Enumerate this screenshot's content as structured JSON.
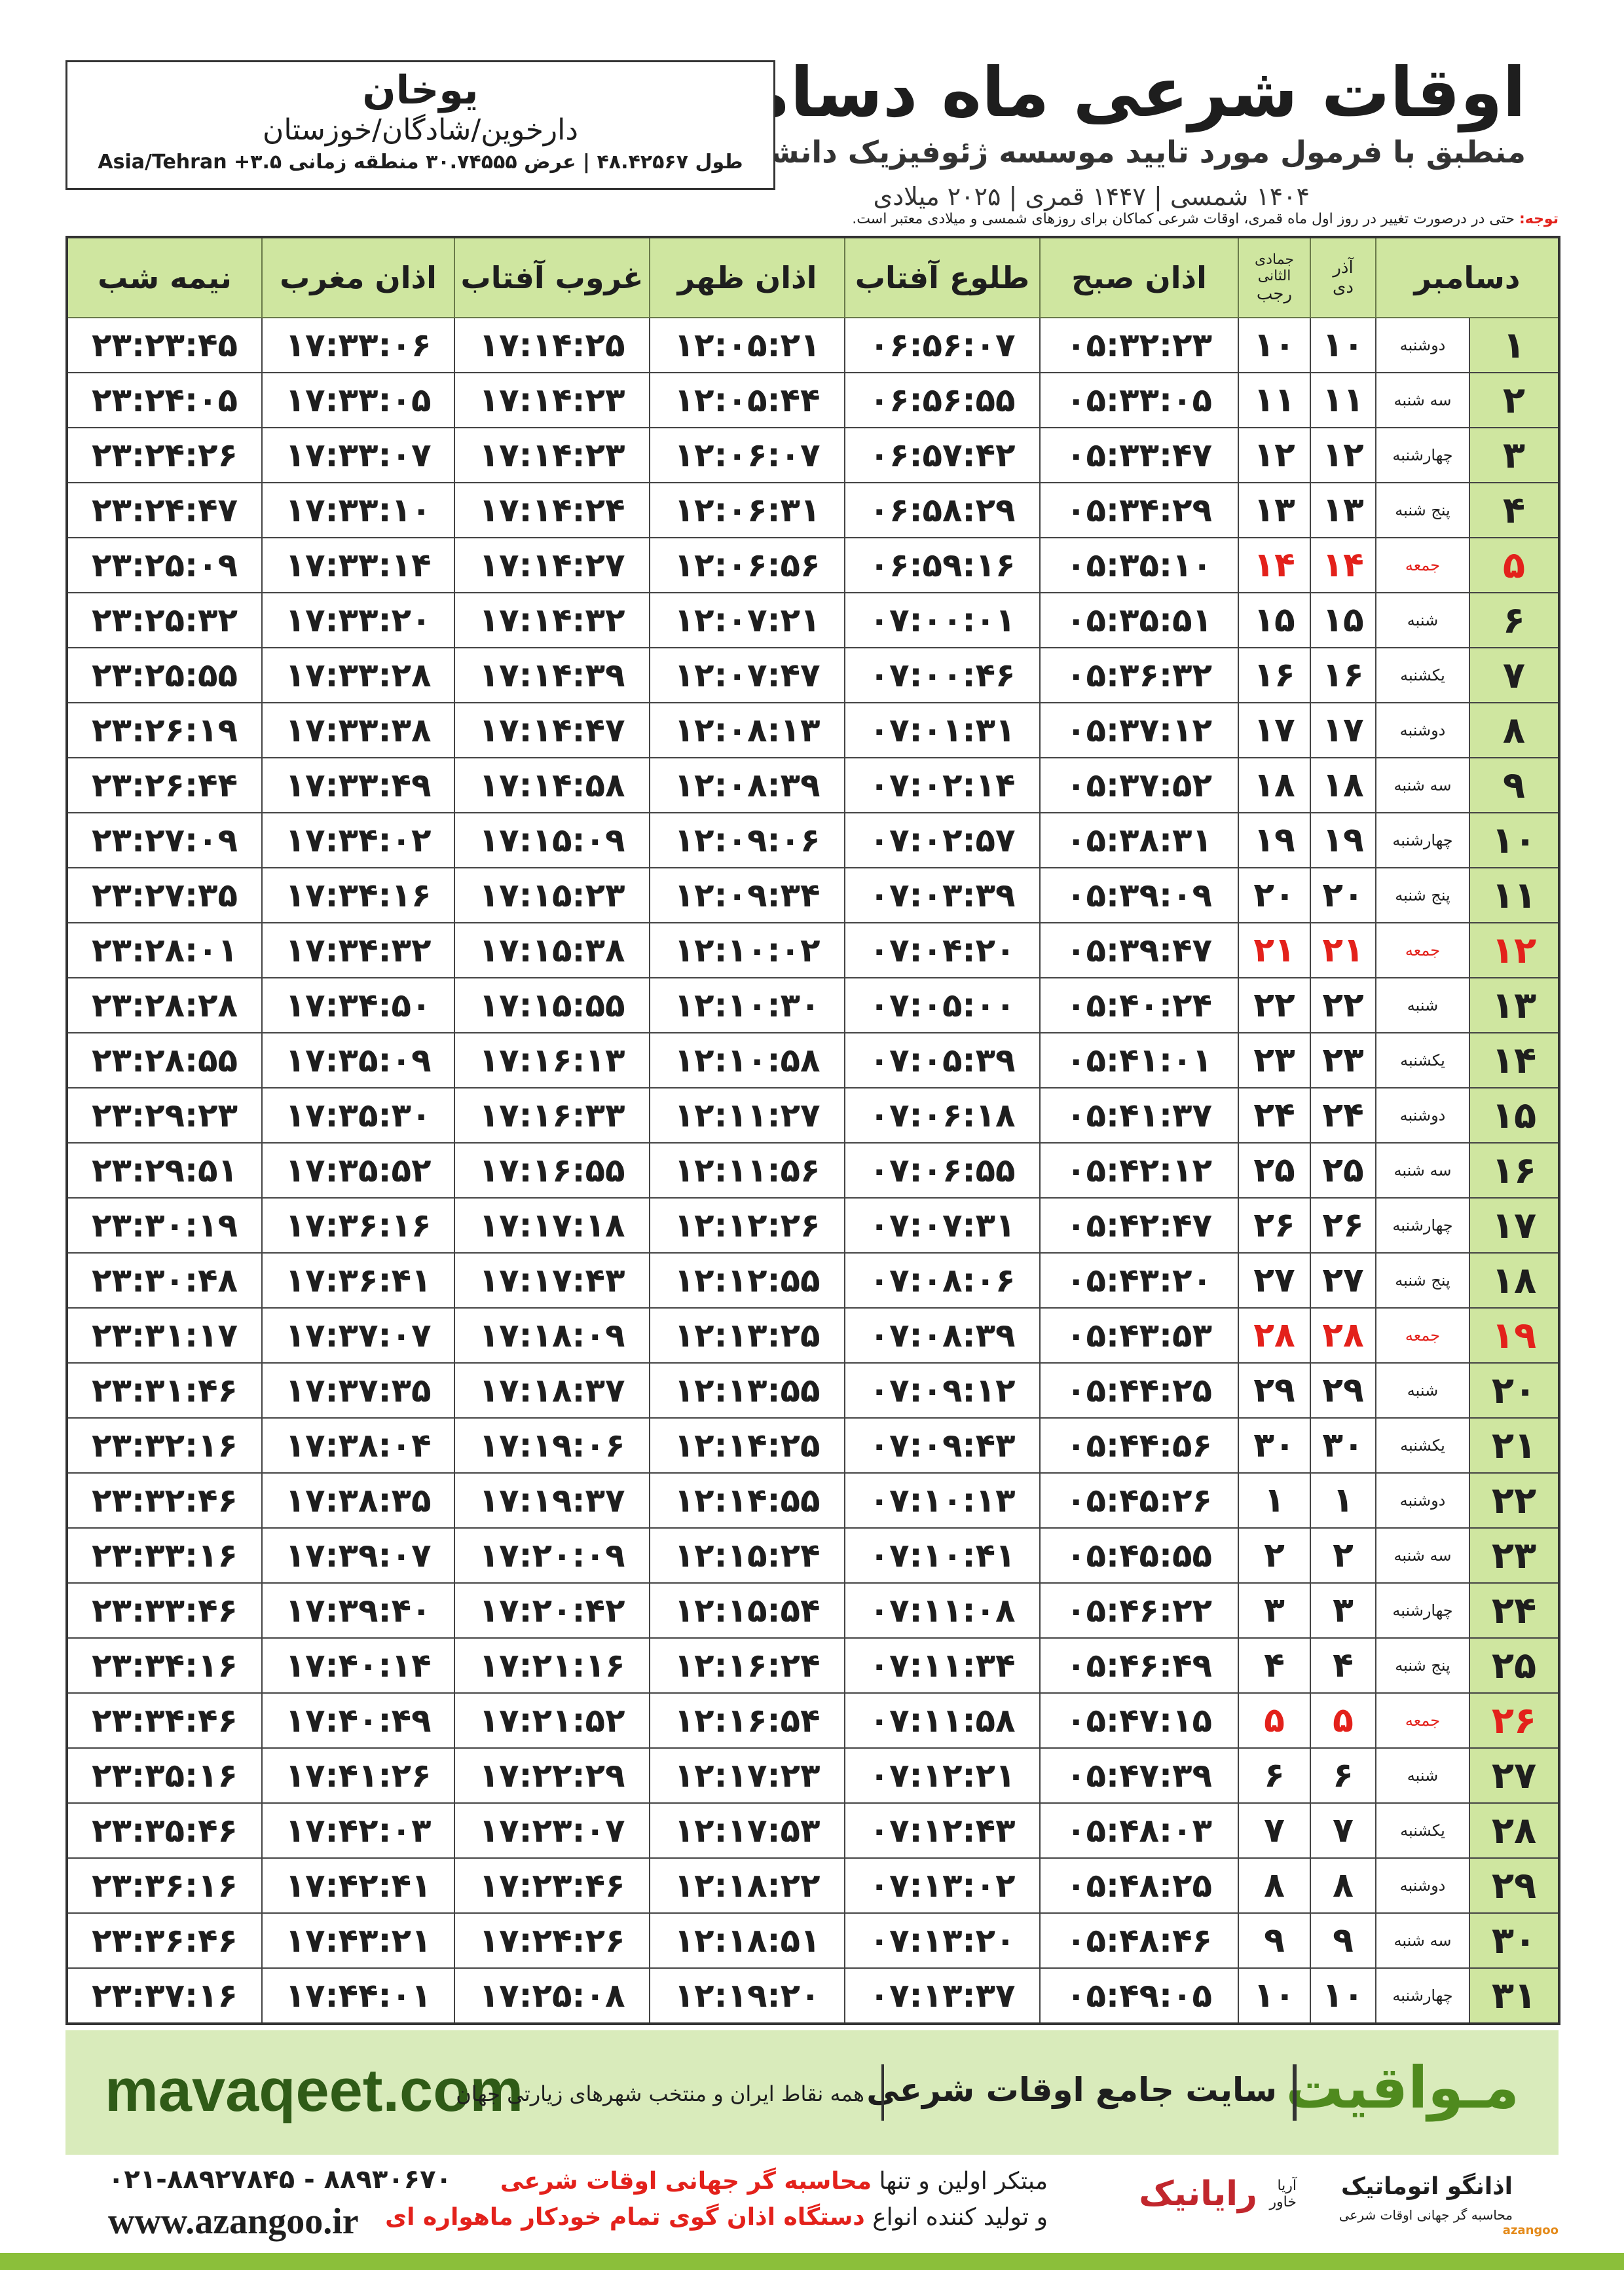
{
  "header": {
    "title": "اوقات شرعی ماه دسامبر",
    "subtitle": "منطبق با فرمول مورد تایید موسسه ژئوفیزیک دانشگاه تهران",
    "years": "۱۴۰۴ شمسی | ۱۴۴۷ قمری | ۲۰۲۵ میلادی",
    "city": "یوخان",
    "region": "دارخوین/شادگان/خوزستان",
    "coords": "طول ۴۸.۴۲۵۶۷ | عرض ۳۰.۷۴۵۵۵ منطقه زمانی ۳.۵+ Asia/Tehran",
    "note_label": "توجه:",
    "note": "حتی در درصورت تغییر در روز اول ماه قمری، اوقات شرعی کماکان برای روزهای شمسی و میلادی معتبر است."
  },
  "table": {
    "holiday_color": "#e3211b",
    "columns": {
      "month": "دسامبر",
      "solar_top": "آذر",
      "solar_bottom": "دی",
      "lunar_top": "جمادی الثانی",
      "lunar_bottom": "رجب",
      "fajr": "اذان صبح",
      "sunrise": "طلوع آفتاب",
      "dhuhr": "اذان ظهر",
      "sunset": "غروب آفتاب",
      "maghrib": "اذان مغرب",
      "midnight": "نیمه شب"
    },
    "rows": [
      {
        "cells": [
          "۱",
          "دوشنبه",
          "۱۰",
          "۱۰",
          "۰۵:۳۲:۲۳",
          "۰۶:۵۶:۰۷",
          "۱۲:۰۵:۲۱",
          "۱۷:۱۴:۲۵",
          "۱۷:۳۳:۰۶",
          "۲۳:۲۳:۴۵"
        ]
      },
      {
        "cells": [
          "۲",
          "سه شنبه",
          "۱۱",
          "۱۱",
          "۰۵:۳۳:۰۵",
          "۰۶:۵۶:۵۵",
          "۱۲:۰۵:۴۴",
          "۱۷:۱۴:۲۳",
          "۱۷:۳۳:۰۵",
          "۲۳:۲۴:۰۵"
        ]
      },
      {
        "cells": [
          "۳",
          "چهارشنبه",
          "۱۲",
          "۱۲",
          "۰۵:۳۳:۴۷",
          "۰۶:۵۷:۴۲",
          "۱۲:۰۶:۰۷",
          "۱۷:۱۴:۲۳",
          "۱۷:۳۳:۰۷",
          "۲۳:۲۴:۲۶"
        ]
      },
      {
        "cells": [
          "۴",
          "پنج شنبه",
          "۱۳",
          "۱۳",
          "۰۵:۳۴:۲۹",
          "۰۶:۵۸:۲۹",
          "۱۲:۰۶:۳۱",
          "۱۷:۱۴:۲۴",
          "۱۷:۳۳:۱۰",
          "۲۳:۲۴:۴۷"
        ]
      },
      {
        "cells": [
          "۵",
          "جمعه",
          "۱۴",
          "۱۴",
          "۰۵:۳۵:۱۰",
          "۰۶:۵۹:۱۶",
          "۱۲:۰۶:۵۶",
          "۱۷:۱۴:۲۷",
          "۱۷:۳۳:۱۴",
          "۲۳:۲۵:۰۹"
        ],
        "holiday": true
      },
      {
        "cells": [
          "۶",
          "شنبه",
          "۱۵",
          "۱۵",
          "۰۵:۳۵:۵۱",
          "۰۷:۰۰:۰۱",
          "۱۲:۰۷:۲۱",
          "۱۷:۱۴:۳۲",
          "۱۷:۳۳:۲۰",
          "۲۳:۲۵:۳۲"
        ]
      },
      {
        "cells": [
          "۷",
          "یکشنبه",
          "۱۶",
          "۱۶",
          "۰۵:۳۶:۳۲",
          "۰۷:۰۰:۴۶",
          "۱۲:۰۷:۴۷",
          "۱۷:۱۴:۳۹",
          "۱۷:۳۳:۲۸",
          "۲۳:۲۵:۵۵"
        ]
      },
      {
        "cells": [
          "۸",
          "دوشنبه",
          "۱۷",
          "۱۷",
          "۰۵:۳۷:۱۲",
          "۰۷:۰۱:۳۱",
          "۱۲:۰۸:۱۳",
          "۱۷:۱۴:۴۷",
          "۱۷:۳۳:۳۸",
          "۲۳:۲۶:۱۹"
        ]
      },
      {
        "cells": [
          "۹",
          "سه شنبه",
          "۱۸",
          "۱۸",
          "۰۵:۳۷:۵۲",
          "۰۷:۰۲:۱۴",
          "۱۲:۰۸:۳۹",
          "۱۷:۱۴:۵۸",
          "۱۷:۳۳:۴۹",
          "۲۳:۲۶:۴۴"
        ]
      },
      {
        "cells": [
          "۱۰",
          "چهارشنبه",
          "۱۹",
          "۱۹",
          "۰۵:۳۸:۳۱",
          "۰۷:۰۲:۵۷",
          "۱۲:۰۹:۰۶",
          "۱۷:۱۵:۰۹",
          "۱۷:۳۴:۰۲",
          "۲۳:۲۷:۰۹"
        ]
      },
      {
        "cells": [
          "۱۱",
          "پنج شنبه",
          "۲۰",
          "۲۰",
          "۰۵:۳۹:۰۹",
          "۰۷:۰۳:۳۹",
          "۱۲:۰۹:۳۴",
          "۱۷:۱۵:۲۳",
          "۱۷:۳۴:۱۶",
          "۲۳:۲۷:۳۵"
        ]
      },
      {
        "cells": [
          "۱۲",
          "جمعه",
          "۲۱",
          "۲۱",
          "۰۵:۳۹:۴۷",
          "۰۷:۰۴:۲۰",
          "۱۲:۱۰:۰۲",
          "۱۷:۱۵:۳۸",
          "۱۷:۳۴:۳۲",
          "۲۳:۲۸:۰۱"
        ],
        "holiday": true
      },
      {
        "cells": [
          "۱۳",
          "شنبه",
          "۲۲",
          "۲۲",
          "۰۵:۴۰:۲۴",
          "۰۷:۰۵:۰۰",
          "۱۲:۱۰:۳۰",
          "۱۷:۱۵:۵۵",
          "۱۷:۳۴:۵۰",
          "۲۳:۲۸:۲۸"
        ]
      },
      {
        "cells": [
          "۱۴",
          "یکشنبه",
          "۲۳",
          "۲۳",
          "۰۵:۴۱:۰۱",
          "۰۷:۰۵:۳۹",
          "۱۲:۱۰:۵۸",
          "۱۷:۱۶:۱۳",
          "۱۷:۳۵:۰۹",
          "۲۳:۲۸:۵۵"
        ]
      },
      {
        "cells": [
          "۱۵",
          "دوشنبه",
          "۲۴",
          "۲۴",
          "۰۵:۴۱:۳۷",
          "۰۷:۰۶:۱۸",
          "۱۲:۱۱:۲۷",
          "۱۷:۱۶:۳۳",
          "۱۷:۳۵:۳۰",
          "۲۳:۲۹:۲۳"
        ]
      },
      {
        "cells": [
          "۱۶",
          "سه شنبه",
          "۲۵",
          "۲۵",
          "۰۵:۴۲:۱۲",
          "۰۷:۰۶:۵۵",
          "۱۲:۱۱:۵۶",
          "۱۷:۱۶:۵۵",
          "۱۷:۳۵:۵۲",
          "۲۳:۲۹:۵۱"
        ]
      },
      {
        "cells": [
          "۱۷",
          "چهارشنبه",
          "۲۶",
          "۲۶",
          "۰۵:۴۲:۴۷",
          "۰۷:۰۷:۳۱",
          "۱۲:۱۲:۲۶",
          "۱۷:۱۷:۱۸",
          "۱۷:۳۶:۱۶",
          "۲۳:۳۰:۱۹"
        ]
      },
      {
        "cells": [
          "۱۸",
          "پنج شنبه",
          "۲۷",
          "۲۷",
          "۰۵:۴۳:۲۰",
          "۰۷:۰۸:۰۶",
          "۱۲:۱۲:۵۵",
          "۱۷:۱۷:۴۳",
          "۱۷:۳۶:۴۱",
          "۲۳:۳۰:۴۸"
        ]
      },
      {
        "cells": [
          "۱۹",
          "جمعه",
          "۲۸",
          "۲۸",
          "۰۵:۴۳:۵۳",
          "۰۷:۰۸:۳۹",
          "۱۲:۱۳:۲۵",
          "۱۷:۱۸:۰۹",
          "۱۷:۳۷:۰۷",
          "۲۳:۳۱:۱۷"
        ],
        "holiday": true
      },
      {
        "cells": [
          "۲۰",
          "شنبه",
          "۲۹",
          "۲۹",
          "۰۵:۴۴:۲۵",
          "۰۷:۰۹:۱۲",
          "۱۲:۱۳:۵۵",
          "۱۷:۱۸:۳۷",
          "۱۷:۳۷:۳۵",
          "۲۳:۳۱:۴۶"
        ]
      },
      {
        "cells": [
          "۲۱",
          "یکشنبه",
          "۳۰",
          "۳۰",
          "۰۵:۴۴:۵۶",
          "۰۷:۰۹:۴۳",
          "۱۲:۱۴:۲۵",
          "۱۷:۱۹:۰۶",
          "۱۷:۳۸:۰۴",
          "۲۳:۳۲:۱۶"
        ]
      },
      {
        "cells": [
          "۲۲",
          "دوشنبه",
          "۱",
          "۱",
          "۰۵:۴۵:۲۶",
          "۰۷:۱۰:۱۳",
          "۱۲:۱۴:۵۵",
          "۱۷:۱۹:۳۷",
          "۱۷:۳۸:۳۵",
          "۲۳:۳۲:۴۶"
        ]
      },
      {
        "cells": [
          "۲۳",
          "سه شنبه",
          "۲",
          "۲",
          "۰۵:۴۵:۵۵",
          "۰۷:۱۰:۴۱",
          "۱۲:۱۵:۲۴",
          "۱۷:۲۰:۰۹",
          "۱۷:۳۹:۰۷",
          "۲۳:۳۳:۱۶"
        ]
      },
      {
        "cells": [
          "۲۴",
          "چهارشنبه",
          "۳",
          "۳",
          "۰۵:۴۶:۲۲",
          "۰۷:۱۱:۰۸",
          "۱۲:۱۵:۵۴",
          "۱۷:۲۰:۴۲",
          "۱۷:۳۹:۴۰",
          "۲۳:۳۳:۴۶"
        ]
      },
      {
        "cells": [
          "۲۵",
          "پنج شنبه",
          "۴",
          "۴",
          "۰۵:۴۶:۴۹",
          "۰۷:۱۱:۳۴",
          "۱۲:۱۶:۲۴",
          "۱۷:۲۱:۱۶",
          "۱۷:۴۰:۱۴",
          "۲۳:۳۴:۱۶"
        ]
      },
      {
        "cells": [
          "۲۶",
          "جمعه",
          "۵",
          "۵",
          "۰۵:۴۷:۱۵",
          "۰۷:۱۱:۵۸",
          "۱۲:۱۶:۵۴",
          "۱۷:۲۱:۵۲",
          "۱۷:۴۰:۴۹",
          "۲۳:۳۴:۴۶"
        ],
        "holiday": true
      },
      {
        "cells": [
          "۲۷",
          "شنبه",
          "۶",
          "۶",
          "۰۵:۴۷:۳۹",
          "۰۷:۱۲:۲۱",
          "۱۲:۱۷:۲۳",
          "۱۷:۲۲:۲۹",
          "۱۷:۴۱:۲۶",
          "۲۳:۳۵:۱۶"
        ]
      },
      {
        "cells": [
          "۲۸",
          "یکشنبه",
          "۷",
          "۷",
          "۰۵:۴۸:۰۳",
          "۰۷:۱۲:۴۳",
          "۱۲:۱۷:۵۳",
          "۱۷:۲۳:۰۷",
          "۱۷:۴۲:۰۳",
          "۲۳:۳۵:۴۶"
        ]
      },
      {
        "cells": [
          "۲۹",
          "دوشنبه",
          "۸",
          "۸",
          "۰۵:۴۸:۲۵",
          "۰۷:۱۳:۰۲",
          "۱۲:۱۸:۲۲",
          "۱۷:۲۳:۴۶",
          "۱۷:۴۲:۴۱",
          "۲۳:۳۶:۱۶"
        ]
      },
      {
        "cells": [
          "۳۰",
          "سه شنبه",
          "۹",
          "۹",
          "۰۵:۴۸:۴۶",
          "۰۷:۱۳:۲۰",
          "۱۲:۱۸:۵۱",
          "۱۷:۲۴:۲۶",
          "۱۷:۴۳:۲۱",
          "۲۳:۳۶:۴۶"
        ]
      },
      {
        "cells": [
          "۳۱",
          "چهارشنبه",
          "۱۰",
          "۱۰",
          "۰۵:۴۹:۰۵",
          "۰۷:۱۳:۳۷",
          "۱۲:۱۹:۲۰",
          "۱۷:۲۵:۰۸",
          "۱۷:۴۴:۰۱",
          "۲۳:۳۷:۱۶"
        ]
      }
    ]
  },
  "banner": {
    "brand": "مـواقیت",
    "slogan": "سایت جامع اوقات شرعی",
    "coverage": "همه نقاط ایران و منتخب شهرهای زیارتی جهان",
    "url": "mavaqeet.com"
  },
  "footer": {
    "phone": "۰۲۱-۸۸۹۲۷۸۴۵ - ۸۸۹۳۰۶۷۰",
    "website": "www.azangoo.ir",
    "line1_a": "مبتکر اولین و تنها",
    "line1_b": "محاسبه گر جهانی اوقات شرعی",
    "line2_a": "و تولید کننده انواع",
    "line2_b": "دستگاه اذان گوی تمام خودکار ماهواره ای",
    "logo1": "رایانیک",
    "logo1_sub": "آریا خاور",
    "logo2": "اذانگو اتوماتیک",
    "logo2_sub": "محاسبه گر جهانی اوقات شرعی",
    "logo2_latin": "azangoo"
  }
}
